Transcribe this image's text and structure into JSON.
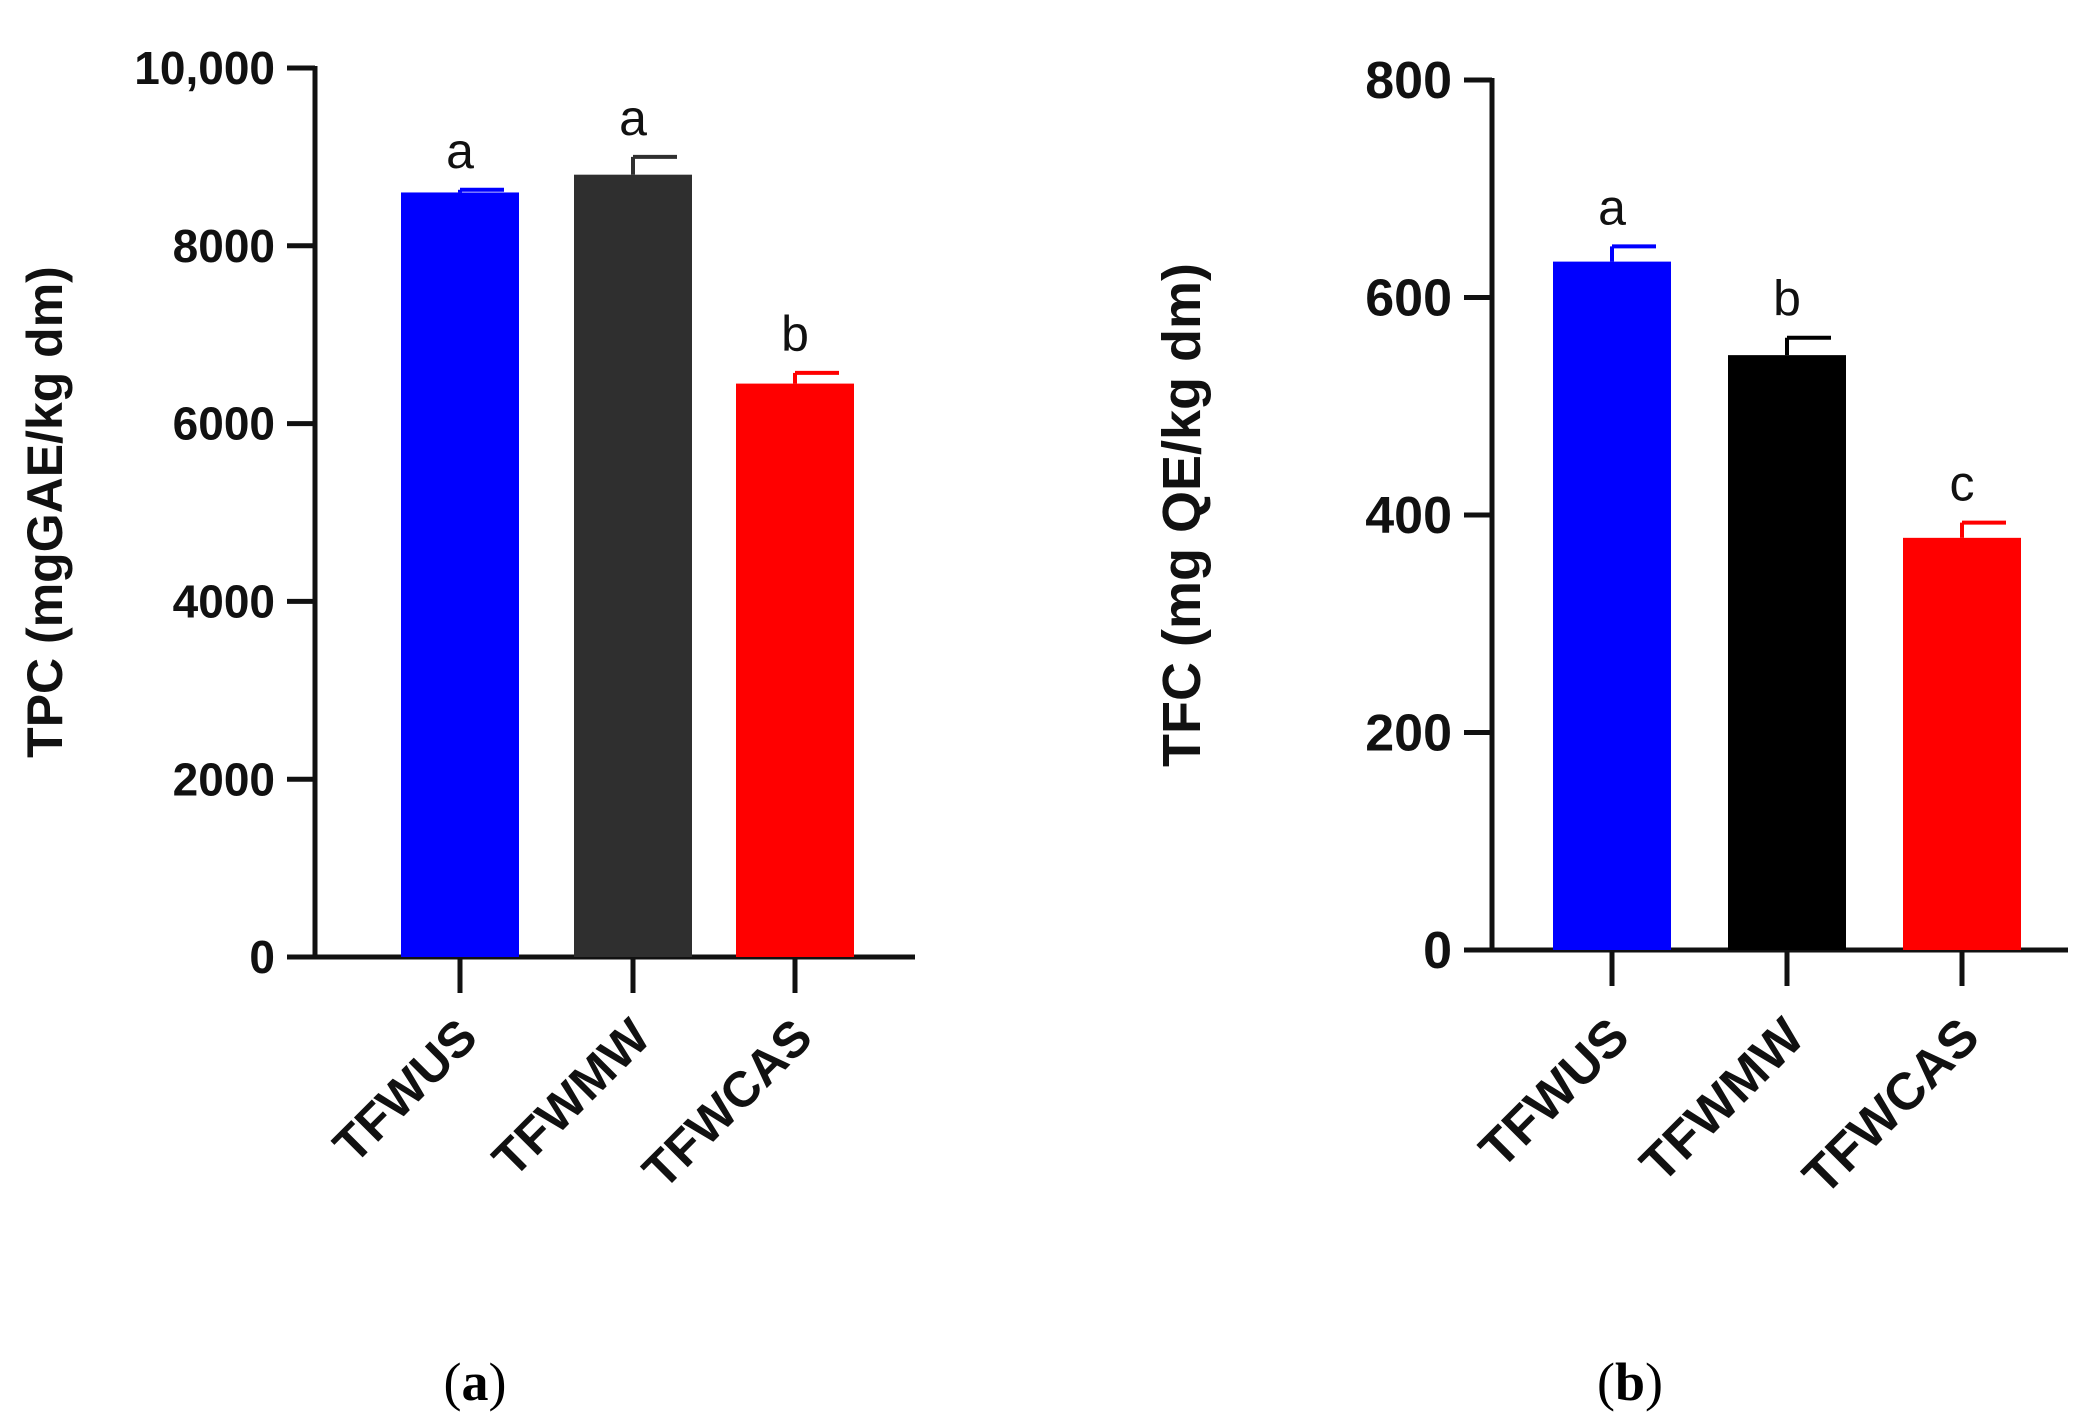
{
  "chart_data": [
    {
      "type": "bar",
      "panel": "a",
      "caption_open": "(",
      "caption_letter": "a",
      "caption_close": ")",
      "ylabel": "TPC (mgGAE/kg dm)",
      "ylim": [
        0,
        10000
      ],
      "yticks": [
        0,
        2000,
        4000,
        6000,
        8000,
        10000
      ],
      "ytick_labels": [
        "0",
        "2000",
        "4000",
        "6000",
        "8000",
        "10,000"
      ],
      "categories": [
        "TFWUS",
        "TFWMW",
        "TFWCAS"
      ],
      "values": [
        8600,
        8800,
        6450
      ],
      "errors": [
        30,
        200,
        120
      ],
      "significance": [
        "a",
        "a",
        "b"
      ],
      "colors": [
        "#0000ff",
        "#2f2f2f",
        "#ff0000"
      ]
    },
    {
      "type": "bar",
      "panel": "b",
      "caption_open": "(",
      "caption_letter": "b",
      "caption_close": ")",
      "ylabel": "TFC  (mg QE/kg dm)",
      "ylim": [
        0,
        800
      ],
      "yticks": [
        0,
        200,
        400,
        600,
        800
      ],
      "ytick_labels": [
        "0",
        "200",
        "400",
        "600",
        "800"
      ],
      "categories": [
        "TFWUS",
        "TFWMW",
        "TFWCAS"
      ],
      "values": [
        633,
        547,
        379
      ],
      "errors": [
        14,
        16,
        14
      ],
      "significance": [
        "a",
        "b",
        "c"
      ],
      "colors": [
        "#0000ff",
        "#000000",
        "#ff0000"
      ]
    }
  ]
}
